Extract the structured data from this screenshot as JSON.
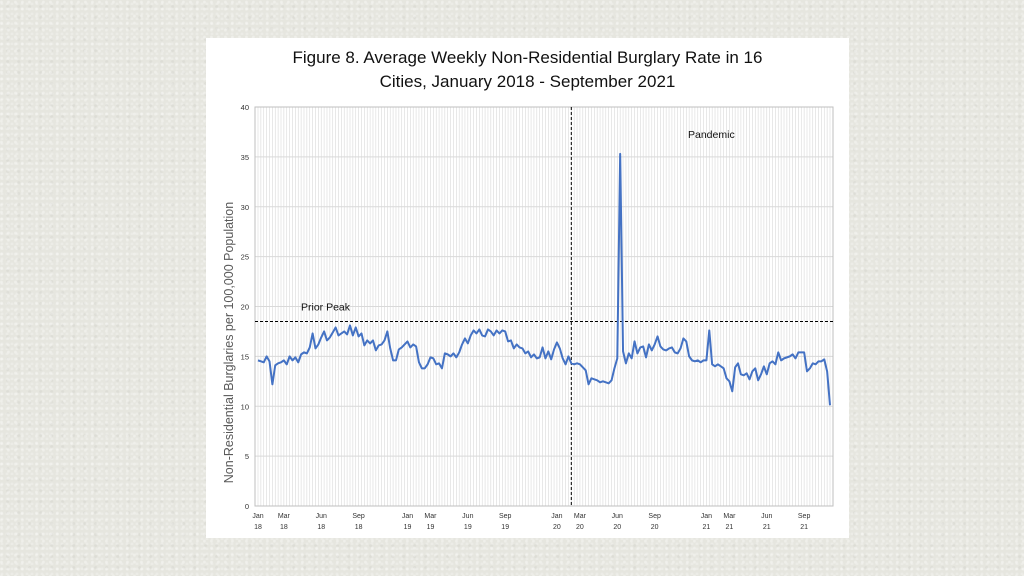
{
  "chart_data": {
    "type": "line",
    "title_line1": "Figure 8. Average Weekly Non-Residential Burglary Rate in 16",
    "title_line2": "Cities, January 2018 - September 2021",
    "ylabel": "Non-Residential Burglaries per 100,000 Population",
    "xlabel": "",
    "ylim": [
      0,
      40
    ],
    "y_ticks": [
      0,
      5,
      10,
      15,
      20,
      25,
      30,
      35,
      40
    ],
    "grid": true,
    "line_color": "#4472c4",
    "x_ticks": [
      {
        "week": 0,
        "line1": "Jan",
        "line2": "18"
      },
      {
        "week": 9,
        "line1": "Mar",
        "line2": "18"
      },
      {
        "week": 22,
        "line1": "Jun",
        "line2": "18"
      },
      {
        "week": 35,
        "line1": "Sep",
        "line2": "18"
      },
      {
        "week": 52,
        "line1": "Jan",
        "line2": "19"
      },
      {
        "week": 60,
        "line1": "Mar",
        "line2": "19"
      },
      {
        "week": 73,
        "line1": "Jun",
        "line2": "19"
      },
      {
        "week": 86,
        "line1": "Sep",
        "line2": "19"
      },
      {
        "week": 104,
        "line1": "Jan",
        "line2": "20"
      },
      {
        "week": 112,
        "line1": "Mar",
        "line2": "20"
      },
      {
        "week": 125,
        "line1": "Jun",
        "line2": "20"
      },
      {
        "week": 138,
        "line1": "Sep",
        "line2": "20"
      },
      {
        "week": 156,
        "line1": "Jan",
        "line2": "21"
      },
      {
        "week": 164,
        "line1": "Mar",
        "line2": "21"
      },
      {
        "week": 177,
        "line1": "Jun",
        "line2": "21"
      },
      {
        "week": 190,
        "line1": "Sep",
        "line2": "21"
      }
    ],
    "annotations": {
      "prior_peak": {
        "label": "Prior Peak",
        "value": 18.5
      },
      "pandemic": {
        "label": "Pandemic",
        "week": 109
      }
    },
    "series": [
      {
        "values": [
          14.6,
          14.5,
          14.4,
          15.0,
          14.5,
          12.2,
          14.1,
          14.3,
          14.4,
          14.6,
          14.2,
          15.0,
          14.6,
          14.9,
          14.4,
          15.2,
          15.4,
          15.3,
          15.9,
          17.3,
          15.8,
          16.2,
          16.9,
          17.5,
          16.6,
          16.9,
          17.4,
          17.9,
          17.1,
          17.3,
          17.5,
          17.2,
          18.1,
          17.1,
          17.9,
          17.0,
          17.3,
          16.1,
          16.6,
          16.3,
          16.6,
          15.6,
          16.1,
          16.2,
          16.6,
          17.5,
          15.8,
          14.6,
          14.6,
          15.7,
          15.9,
          16.2,
          16.5,
          15.9,
          16.2,
          16.0,
          14.4,
          13.8,
          13.8,
          14.2,
          14.9,
          14.8,
          14.2,
          14.3,
          13.8,
          15.3,
          15.2,
          15.0,
          15.3,
          14.9,
          15.4,
          16.2,
          16.8,
          16.3,
          17.1,
          17.6,
          17.3,
          17.7,
          17.1,
          17.0,
          17.7,
          17.5,
          17.1,
          17.6,
          17.3,
          17.6,
          17.5,
          16.5,
          16.6,
          15.8,
          16.2,
          15.9,
          15.8,
          15.3,
          15.5,
          14.9,
          15.2,
          14.8,
          14.9,
          15.9,
          14.8,
          15.5,
          14.7,
          15.7,
          16.4,
          15.8,
          14.8,
          14.2,
          15.0,
          14.3,
          14.2,
          14.3,
          14.2,
          13.9,
          13.6,
          12.2,
          12.8,
          12.7,
          12.6,
          12.4,
          12.5,
          12.4,
          12.3,
          12.6,
          13.8,
          14.8,
          35.3,
          15.5,
          14.3,
          15.3,
          14.8,
          16.5,
          15.3,
          15.9,
          16.0,
          14.9,
          16.2,
          15.6,
          16.2,
          17.0,
          16.0,
          15.7,
          15.6,
          15.8,
          15.9,
          15.4,
          15.3,
          15.8,
          16.8,
          16.5,
          15.0,
          14.6,
          14.5,
          14.6,
          14.4,
          14.6,
          14.6,
          17.6,
          14.2,
          14.0,
          14.2,
          14.0,
          13.8,
          12.8,
          12.5,
          11.5,
          13.9,
          14.3,
          13.2,
          13.1,
          13.3,
          12.7,
          13.5,
          13.8,
          12.6,
          13.2,
          14.0,
          13.2,
          14.3,
          14.5,
          14.2,
          15.4,
          14.6,
          14.8,
          14.9,
          15.0,
          15.2,
          14.8,
          15.4,
          15.4,
          15.4,
          13.5,
          13.8,
          14.3,
          14.2,
          14.5,
          14.5,
          14.7,
          13.5,
          10.1
        ]
      }
    ]
  }
}
